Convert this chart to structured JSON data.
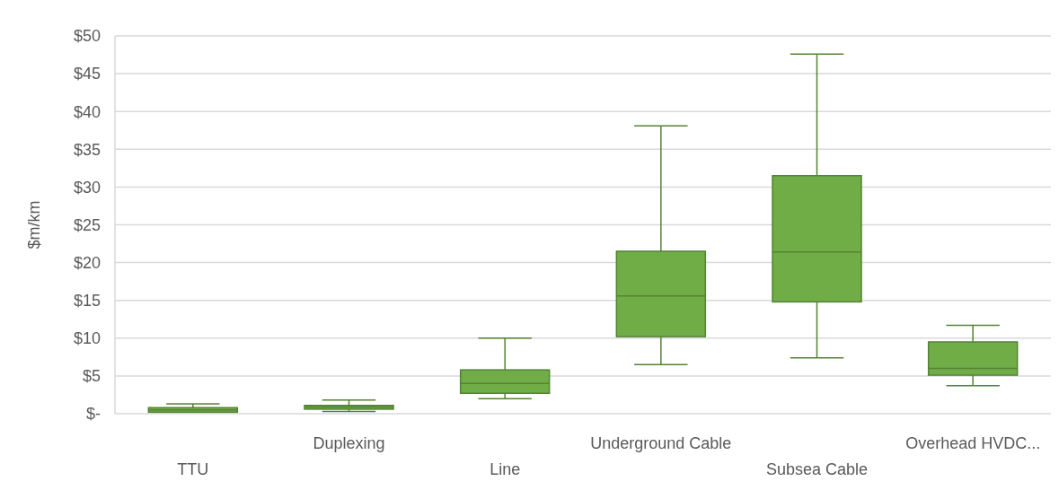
{
  "chart_data": {
    "type": "box",
    "ylabel": "$m/km",
    "categories": [
      "TTU",
      "Duplexing",
      "Line",
      "Underground Cable",
      "Subsea Cable",
      "Overhead HVDC..."
    ],
    "series": [
      {
        "color": "#70ad47",
        "boxes": [
          {
            "low": 0.2,
            "q1": 0.2,
            "median": 0.5,
            "q3": 0.8,
            "high": 1.3
          },
          {
            "low": 0.3,
            "q1": 0.6,
            "median": 0.9,
            "q3": 1.1,
            "high": 1.8
          },
          {
            "low": 2.0,
            "q1": 2.7,
            "median": 4.0,
            "q3": 5.8,
            "high": 10.0
          },
          {
            "low": 6.5,
            "q1": 10.2,
            "median": 15.6,
            "q3": 21.5,
            "high": 38.1
          },
          {
            "low": 7.4,
            "q1": 14.8,
            "median": 21.4,
            "q3": 31.5,
            "high": 47.6
          },
          {
            "low": 3.7,
            "q1": 5.1,
            "median": 6.0,
            "q3": 9.5,
            "high": 11.7
          }
        ]
      }
    ],
    "ylim": [
      0,
      50
    ],
    "yticks": [
      {
        "value": 0,
        "label": "$-"
      },
      {
        "value": 5,
        "label": "$5"
      },
      {
        "value": 10,
        "label": "$10"
      },
      {
        "value": 15,
        "label": "$15"
      },
      {
        "value": 20,
        "label": "$20"
      },
      {
        "value": 25,
        "label": "$25"
      },
      {
        "value": 30,
        "label": "$30"
      },
      {
        "value": 35,
        "label": "$35"
      },
      {
        "value": 40,
        "label": "$40"
      },
      {
        "value": 45,
        "label": "$45"
      },
      {
        "value": 50,
        "label": "$50"
      }
    ],
    "grid": "y"
  }
}
